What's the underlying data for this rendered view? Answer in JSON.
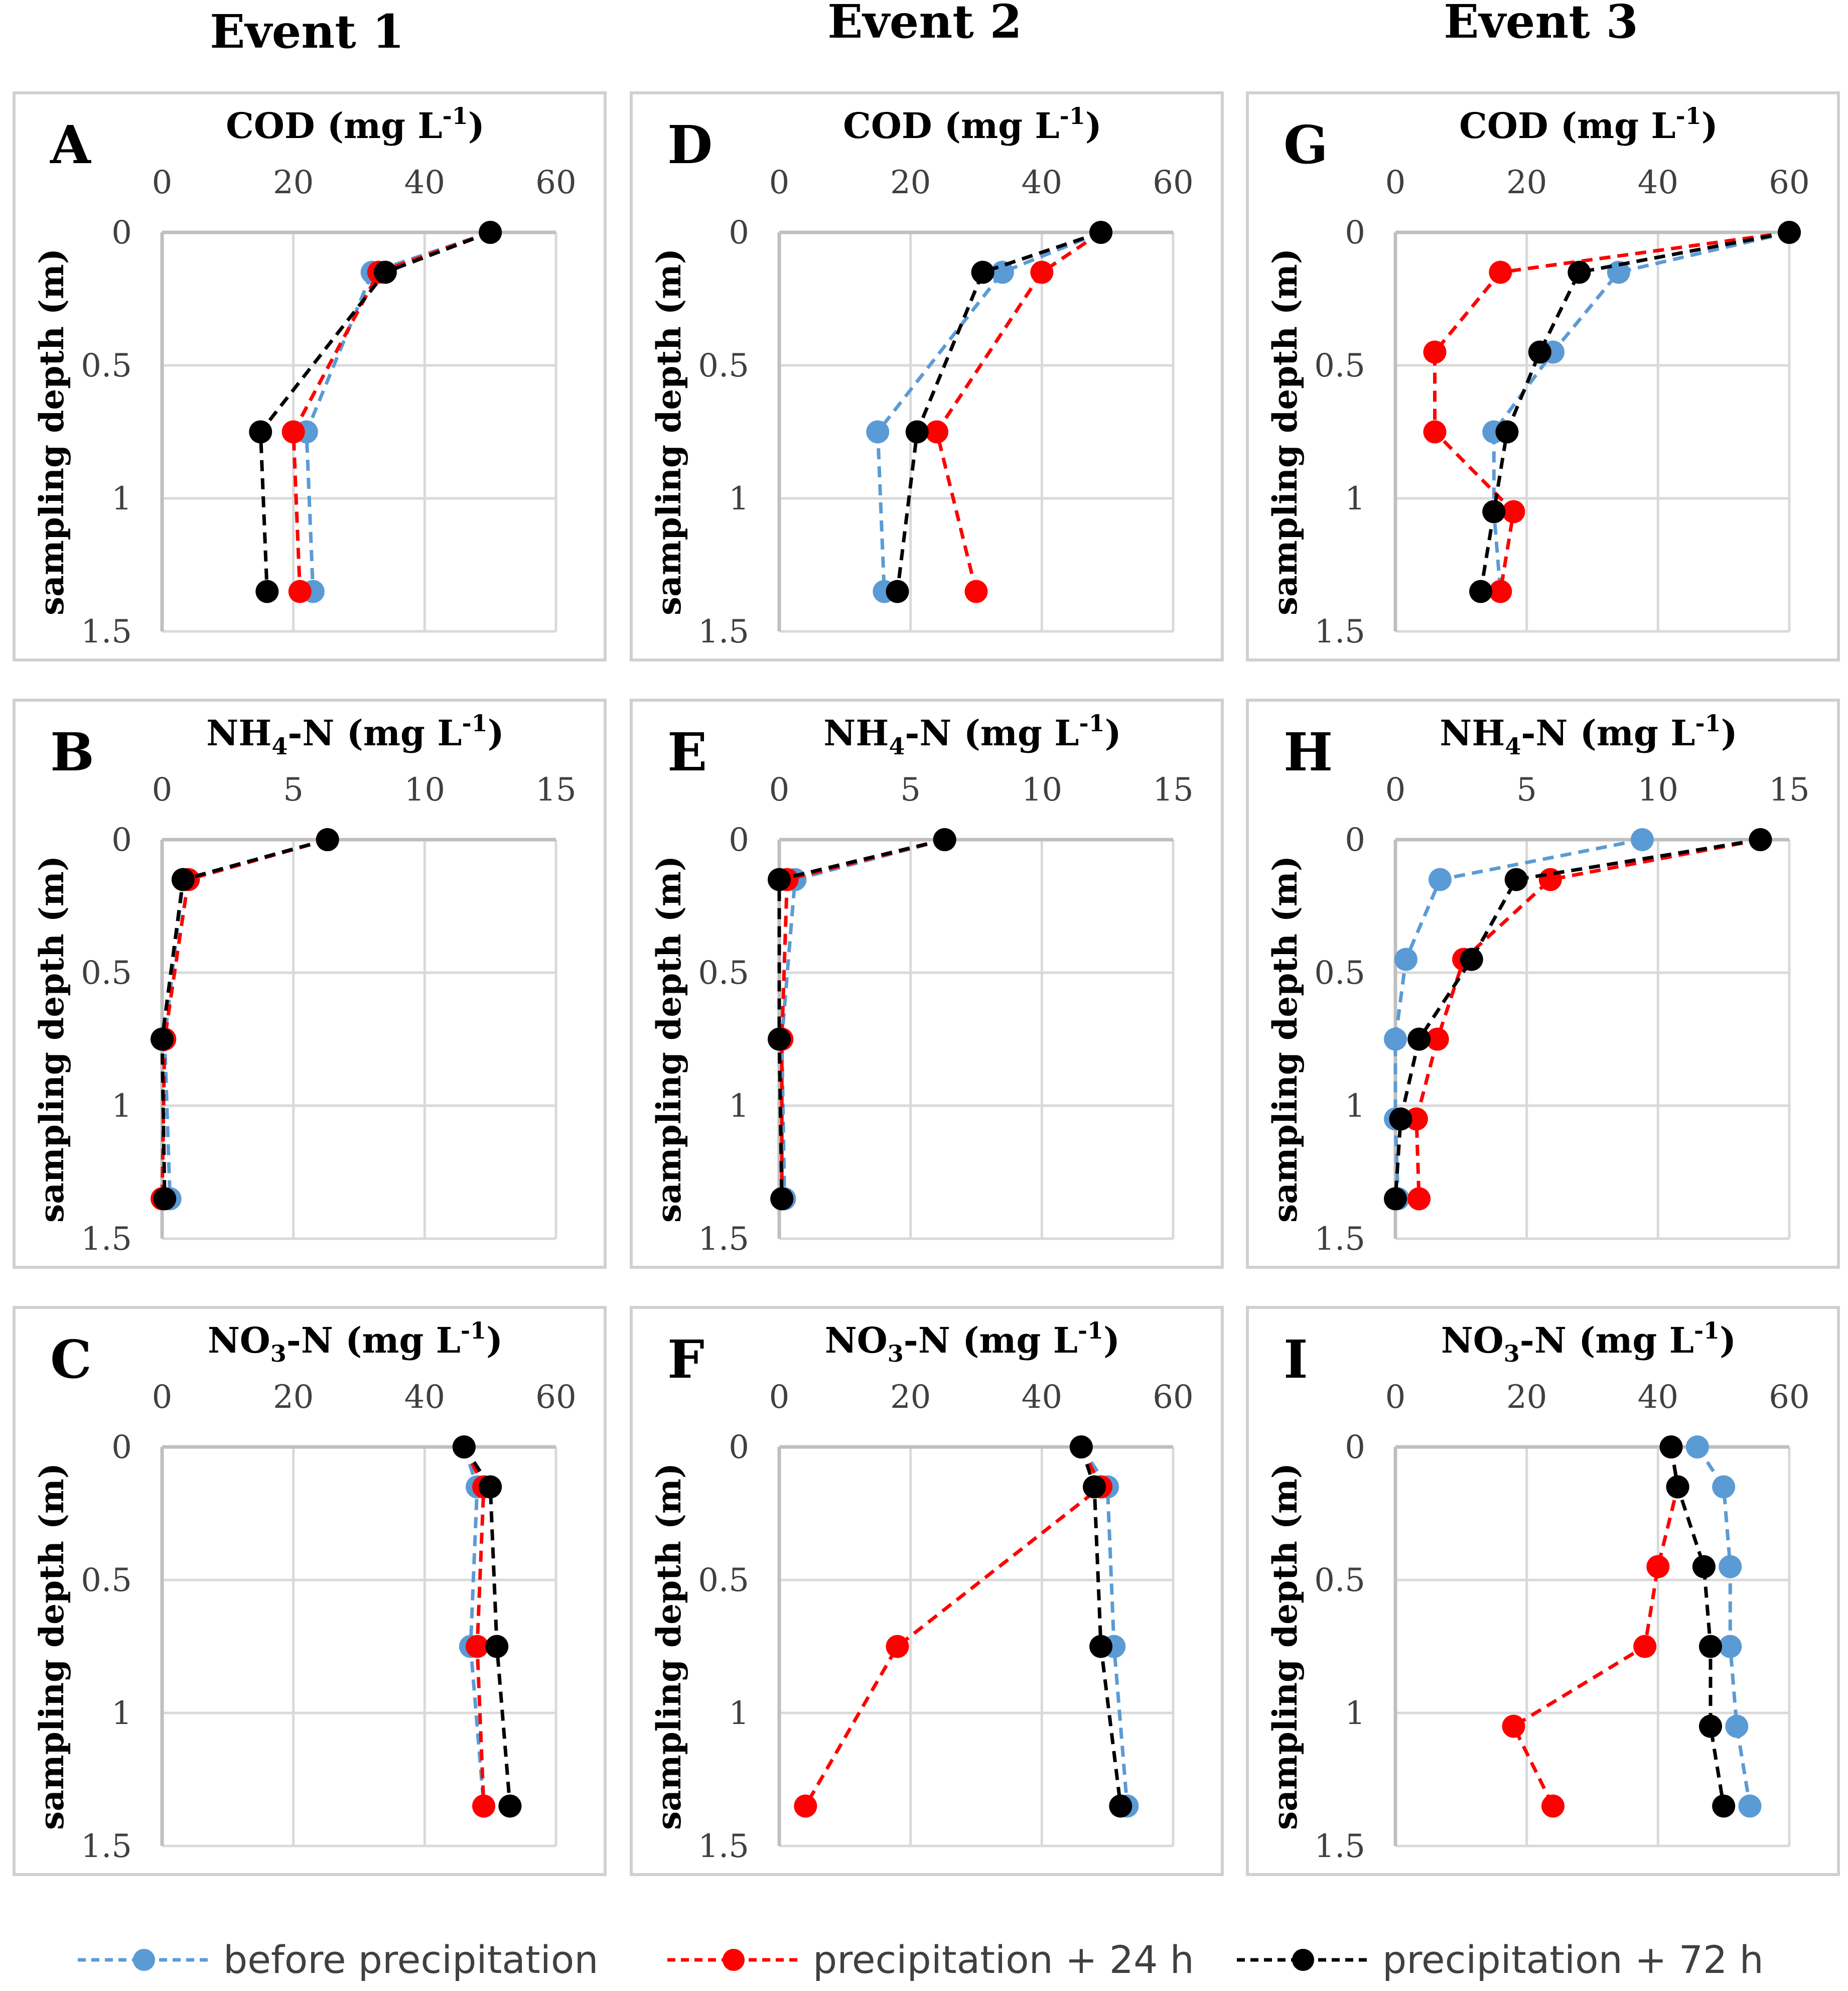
{
  "figure": {
    "events": [
      "Event 1",
      "Event 2",
      "Event 3"
    ]
  },
  "legend": {
    "items": [
      {
        "label": "before precipitation",
        "color": "#5b9bd5"
      },
      {
        "label": "precipitation + 24 h",
        "color": "#ff0000"
      },
      {
        "label": "precipitation + 72 h",
        "color": "#000000"
      }
    ]
  },
  "chart_data": [
    {
      "id": "A",
      "type": "line",
      "event": "Event 1",
      "title_main": "COD (mg L",
      "title_sub": "",
      "title_tail": "-1",
      "title_close": ")",
      "ylabel": "sampling depth (m)",
      "xlim": [
        0,
        60
      ],
      "xticks": [
        "0",
        "20",
        "40",
        "60"
      ],
      "ylim": [
        0,
        1.5
      ],
      "yticks": [
        "0",
        "0.5",
        "1",
        "1.5"
      ],
      "series": [
        {
          "name": "before precipitation",
          "points": [
            [
              50,
              0.0
            ],
            [
              32,
              0.15
            ],
            [
              22,
              0.75
            ],
            [
              23,
              1.35
            ]
          ]
        },
        {
          "name": "precipitation + 24 h",
          "points": [
            [
              50,
              0.0
            ],
            [
              33,
              0.15
            ],
            [
              20,
              0.75
            ],
            [
              21,
              1.35
            ]
          ]
        },
        {
          "name": "precipitation + 72 h",
          "points": [
            [
              50,
              0.0
            ],
            [
              34,
              0.15
            ],
            [
              15,
              0.75
            ],
            [
              16,
              1.35
            ]
          ]
        }
      ]
    },
    {
      "id": "D",
      "type": "line",
      "event": "Event 2",
      "title_main": "COD (mg L",
      "title_sub": "",
      "title_tail": "-1",
      "title_close": ")",
      "ylabel": "sampling depth (m)",
      "xlim": [
        0,
        60
      ],
      "xticks": [
        "0",
        "20",
        "40",
        "60"
      ],
      "ylim": [
        0,
        1.5
      ],
      "yticks": [
        "0",
        "0.5",
        "1",
        "1.5"
      ],
      "series": [
        {
          "name": "before precipitation",
          "points": [
            [
              49,
              0.0
            ],
            [
              34,
              0.15
            ],
            [
              15,
              0.75
            ],
            [
              16,
              1.35
            ]
          ]
        },
        {
          "name": "precipitation + 24 h",
          "points": [
            [
              49,
              0.0
            ],
            [
              40,
              0.15
            ],
            [
              24,
              0.75
            ],
            [
              30,
              1.35
            ]
          ]
        },
        {
          "name": "precipitation + 72 h",
          "points": [
            [
              49,
              0.0
            ],
            [
              31,
              0.15
            ],
            [
              21,
              0.75
            ],
            [
              18,
              1.35
            ]
          ]
        }
      ]
    },
    {
      "id": "G",
      "type": "line",
      "event": "Event 3",
      "title_main": "COD (mg L",
      "title_sub": "",
      "title_tail": "-1",
      "title_close": ")",
      "ylabel": "sampling depth (m)",
      "xlim": [
        0,
        60
      ],
      "xticks": [
        "0",
        "20",
        "40",
        "60"
      ],
      "ylim": [
        0,
        1.5
      ],
      "yticks": [
        "0",
        "0.5",
        "1",
        "1.5"
      ],
      "series": [
        {
          "name": "before precipitation",
          "points": [
            [
              60,
              0.0
            ],
            [
              34,
              0.15
            ],
            [
              24,
              0.45
            ],
            [
              15,
              0.75
            ],
            [
              15,
              1.05
            ],
            [
              16,
              1.35
            ]
          ]
        },
        {
          "name": "precipitation + 24 h",
          "points": [
            [
              60,
              0.0
            ],
            [
              16,
              0.15
            ],
            [
              6,
              0.45
            ],
            [
              6,
              0.75
            ],
            [
              18,
              1.05
            ],
            [
              16,
              1.35
            ]
          ]
        },
        {
          "name": "precipitation + 72 h",
          "points": [
            [
              60,
              0.0
            ],
            [
              28,
              0.15
            ],
            [
              22,
              0.45
            ],
            [
              17,
              0.75
            ],
            [
              15,
              1.05
            ],
            [
              13,
              1.35
            ]
          ]
        }
      ]
    },
    {
      "id": "B",
      "type": "line",
      "event": "Event 1",
      "title_main": "NH",
      "title_sub": "4",
      "title_tail": "-N (mg L",
      "title_sup": "-1",
      "title_close": ")",
      "ylabel": "sampling depth (m)",
      "xlim": [
        0,
        15
      ],
      "xticks": [
        "0",
        "5",
        "10",
        "15"
      ],
      "ylim": [
        0,
        1.5
      ],
      "yticks": [
        "0",
        "0.5",
        "1",
        "1.5"
      ],
      "series": [
        {
          "name": "before precipitation",
          "points": [
            [
              6.3,
              0.0
            ],
            [
              0.8,
              0.15
            ],
            [
              0.1,
              0.75
            ],
            [
              0.3,
              1.35
            ]
          ]
        },
        {
          "name": "precipitation + 24 h",
          "points": [
            [
              6.3,
              0.0
            ],
            [
              1.0,
              0.15
            ],
            [
              0.1,
              0.75
            ],
            [
              0.0,
              1.35
            ]
          ]
        },
        {
          "name": "precipitation + 72 h",
          "points": [
            [
              6.3,
              0.0
            ],
            [
              0.8,
              0.15
            ],
            [
              0.0,
              0.75
            ],
            [
              0.1,
              1.35
            ]
          ]
        }
      ]
    },
    {
      "id": "E",
      "type": "line",
      "event": "Event 2",
      "title_main": "NH",
      "title_sub": "4",
      "title_tail": "-N (mg L",
      "title_sup": "-1",
      "title_close": ")",
      "ylabel": "sampling depth (m)",
      "xlim": [
        0,
        15
      ],
      "xticks": [
        "0",
        "5",
        "10",
        "15"
      ],
      "ylim": [
        0,
        1.5
      ],
      "yticks": [
        "0",
        "0.5",
        "1",
        "1.5"
      ],
      "series": [
        {
          "name": "before precipitation",
          "points": [
            [
              6.3,
              0.0
            ],
            [
              0.6,
              0.15
            ],
            [
              0.1,
              0.75
            ],
            [
              0.2,
              1.35
            ]
          ]
        },
        {
          "name": "precipitation + 24 h",
          "points": [
            [
              6.3,
              0.0
            ],
            [
              0.3,
              0.15
            ],
            [
              0.1,
              0.75
            ],
            [
              0.1,
              1.35
            ]
          ]
        },
        {
          "name": "precipitation + 72 h",
          "points": [
            [
              6.3,
              0.0
            ],
            [
              0.0,
              0.15
            ],
            [
              0.0,
              0.75
            ],
            [
              0.1,
              1.35
            ]
          ]
        }
      ]
    },
    {
      "id": "H",
      "type": "line",
      "event": "Event 3",
      "title_main": "NH",
      "title_sub": "4",
      "title_tail": "-N (mg L",
      "title_sup": "-1",
      "title_close": ")",
      "ylabel": "sampling depth (m)",
      "xlim": [
        0,
        15
      ],
      "xticks": [
        "0",
        "5",
        "10",
        "15"
      ],
      "ylim": [
        0,
        1.5
      ],
      "yticks": [
        "0",
        "0.5",
        "1",
        "1.5"
      ],
      "series": [
        {
          "name": "before precipitation",
          "points": [
            [
              9.4,
              0.0
            ],
            [
              1.7,
              0.15
            ],
            [
              0.4,
              0.45
            ],
            [
              0.0,
              0.75
            ],
            [
              0.0,
              1.05
            ],
            [
              0.1,
              1.35
            ]
          ]
        },
        {
          "name": "precipitation + 24 h",
          "points": [
            [
              13.9,
              0.0
            ],
            [
              5.9,
              0.15
            ],
            [
              2.6,
              0.45
            ],
            [
              1.6,
              0.75
            ],
            [
              0.8,
              1.05
            ],
            [
              0.9,
              1.35
            ]
          ]
        },
        {
          "name": "precipitation + 72 h",
          "points": [
            [
              13.9,
              0.0
            ],
            [
              4.6,
              0.15
            ],
            [
              2.9,
              0.45
            ],
            [
              0.9,
              0.75
            ],
            [
              0.2,
              1.05
            ],
            [
              0.0,
              1.35
            ]
          ]
        }
      ]
    },
    {
      "id": "C",
      "type": "line",
      "event": "Event 1",
      "title_main": "NO",
      "title_sub": "3",
      "title_tail": "-N (mg L",
      "title_sup": "-1",
      "title_close": ")",
      "ylabel": "sampling depth (m)",
      "xlim": [
        0,
        60
      ],
      "xticks": [
        "0",
        "20",
        "40",
        "60"
      ],
      "ylim": [
        0,
        1.5
      ],
      "yticks": [
        "0",
        "0.5",
        "1",
        "1.5"
      ],
      "series": [
        {
          "name": "before precipitation",
          "points": [
            [
              46,
              0.0
            ],
            [
              48,
              0.15
            ],
            [
              47,
              0.75
            ],
            [
              49,
              1.35
            ]
          ]
        },
        {
          "name": "precipitation + 24 h",
          "points": [
            [
              46,
              0.0
            ],
            [
              49,
              0.15
            ],
            [
              48,
              0.75
            ],
            [
              49,
              1.35
            ]
          ]
        },
        {
          "name": "precipitation + 72 h",
          "points": [
            [
              46,
              0.0
            ],
            [
              50,
              0.15
            ],
            [
              51,
              0.75
            ],
            [
              53,
              1.35
            ]
          ]
        }
      ]
    },
    {
      "id": "F",
      "type": "line",
      "event": "Event 2",
      "title_main": "NO",
      "title_sub": "3",
      "title_tail": "-N (mg L",
      "title_sup": "-1",
      "title_close": ")",
      "ylabel": "sampling depth (m)",
      "xlim": [
        0,
        60
      ],
      "xticks": [
        "0",
        "20",
        "40",
        "60"
      ],
      "ylim": [
        0,
        1.5
      ],
      "yticks": [
        "0",
        "0.5",
        "1",
        "1.5"
      ],
      "series": [
        {
          "name": "before precipitation",
          "points": [
            [
              46,
              0.0
            ],
            [
              50,
              0.15
            ],
            [
              51,
              0.75
            ],
            [
              53,
              1.35
            ]
          ]
        },
        {
          "name": "precipitation + 24 h",
          "points": [
            [
              46,
              0.0
            ],
            [
              49,
              0.15
            ],
            [
              18,
              0.75
            ],
            [
              4,
              1.35
            ]
          ]
        },
        {
          "name": "precipitation + 72 h",
          "points": [
            [
              46,
              0.0
            ],
            [
              48,
              0.15
            ],
            [
              49,
              0.75
            ],
            [
              52,
              1.35
            ]
          ]
        }
      ]
    },
    {
      "id": "I",
      "type": "line",
      "event": "Event 3",
      "title_main": "NO",
      "title_sub": "3",
      "title_tail": "-N (mg L",
      "title_sup": "-1",
      "title_close": ")",
      "ylabel": "sampling depth (m)",
      "xlim": [
        0,
        60
      ],
      "xticks": [
        "0",
        "20",
        "40",
        "60"
      ],
      "ylim": [
        0,
        1.5
      ],
      "yticks": [
        "0",
        "0.5",
        "1",
        "1.5"
      ],
      "series": [
        {
          "name": "before precipitation",
          "points": [
            [
              46,
              0.0
            ],
            [
              50,
              0.15
            ],
            [
              51,
              0.45
            ],
            [
              51,
              0.75
            ],
            [
              52,
              1.05
            ],
            [
              54,
              1.35
            ]
          ]
        },
        {
          "name": "precipitation + 24 h",
          "points": [
            [
              42,
              0.0
            ],
            [
              43,
              0.15
            ],
            [
              40,
              0.45
            ],
            [
              38,
              0.75
            ],
            [
              18,
              1.05
            ],
            [
              24,
              1.35
            ]
          ]
        },
        {
          "name": "precipitation + 72 h",
          "points": [
            [
              42,
              0.0
            ],
            [
              43,
              0.15
            ],
            [
              47,
              0.45
            ],
            [
              48,
              0.75
            ],
            [
              48,
              1.05
            ],
            [
              50,
              1.35
            ]
          ]
        }
      ]
    }
  ]
}
